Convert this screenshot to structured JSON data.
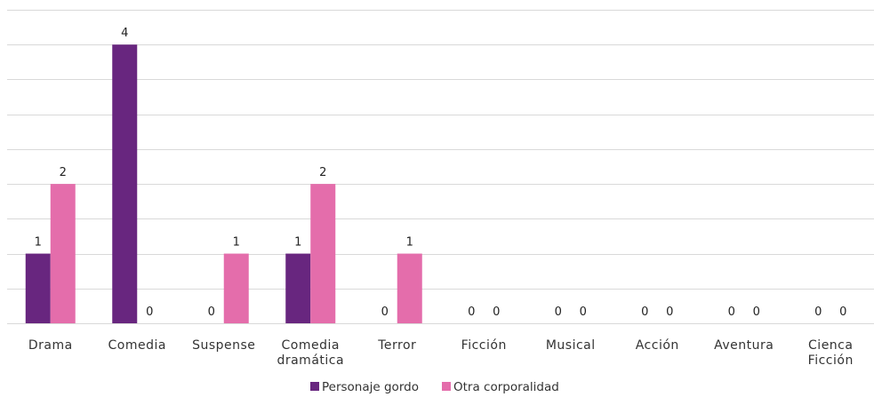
{
  "chart_data": {
    "type": "bar",
    "categories": [
      [
        "Drama"
      ],
      [
        "Comedia"
      ],
      [
        "Suspense"
      ],
      [
        "Comedia",
        "dramática"
      ],
      [
        "Terror"
      ],
      [
        "Ficción"
      ],
      [
        "Musical"
      ],
      [
        "Acción"
      ],
      [
        "Aventura"
      ],
      [
        "Cienca",
        "Ficción"
      ]
    ],
    "series": [
      {
        "name": "Personaje gordo",
        "color": "#68267f",
        "values": [
          1,
          4,
          0,
          1,
          0,
          0,
          0,
          0,
          0,
          0
        ]
      },
      {
        "name": "Otra corporalidad",
        "color": "#e46dab",
        "values": [
          2,
          0,
          1,
          2,
          1,
          0,
          0,
          0,
          0,
          0
        ]
      }
    ],
    "ylim": [
      0,
      4.5
    ],
    "grid": true,
    "legend": "bottom-center"
  }
}
